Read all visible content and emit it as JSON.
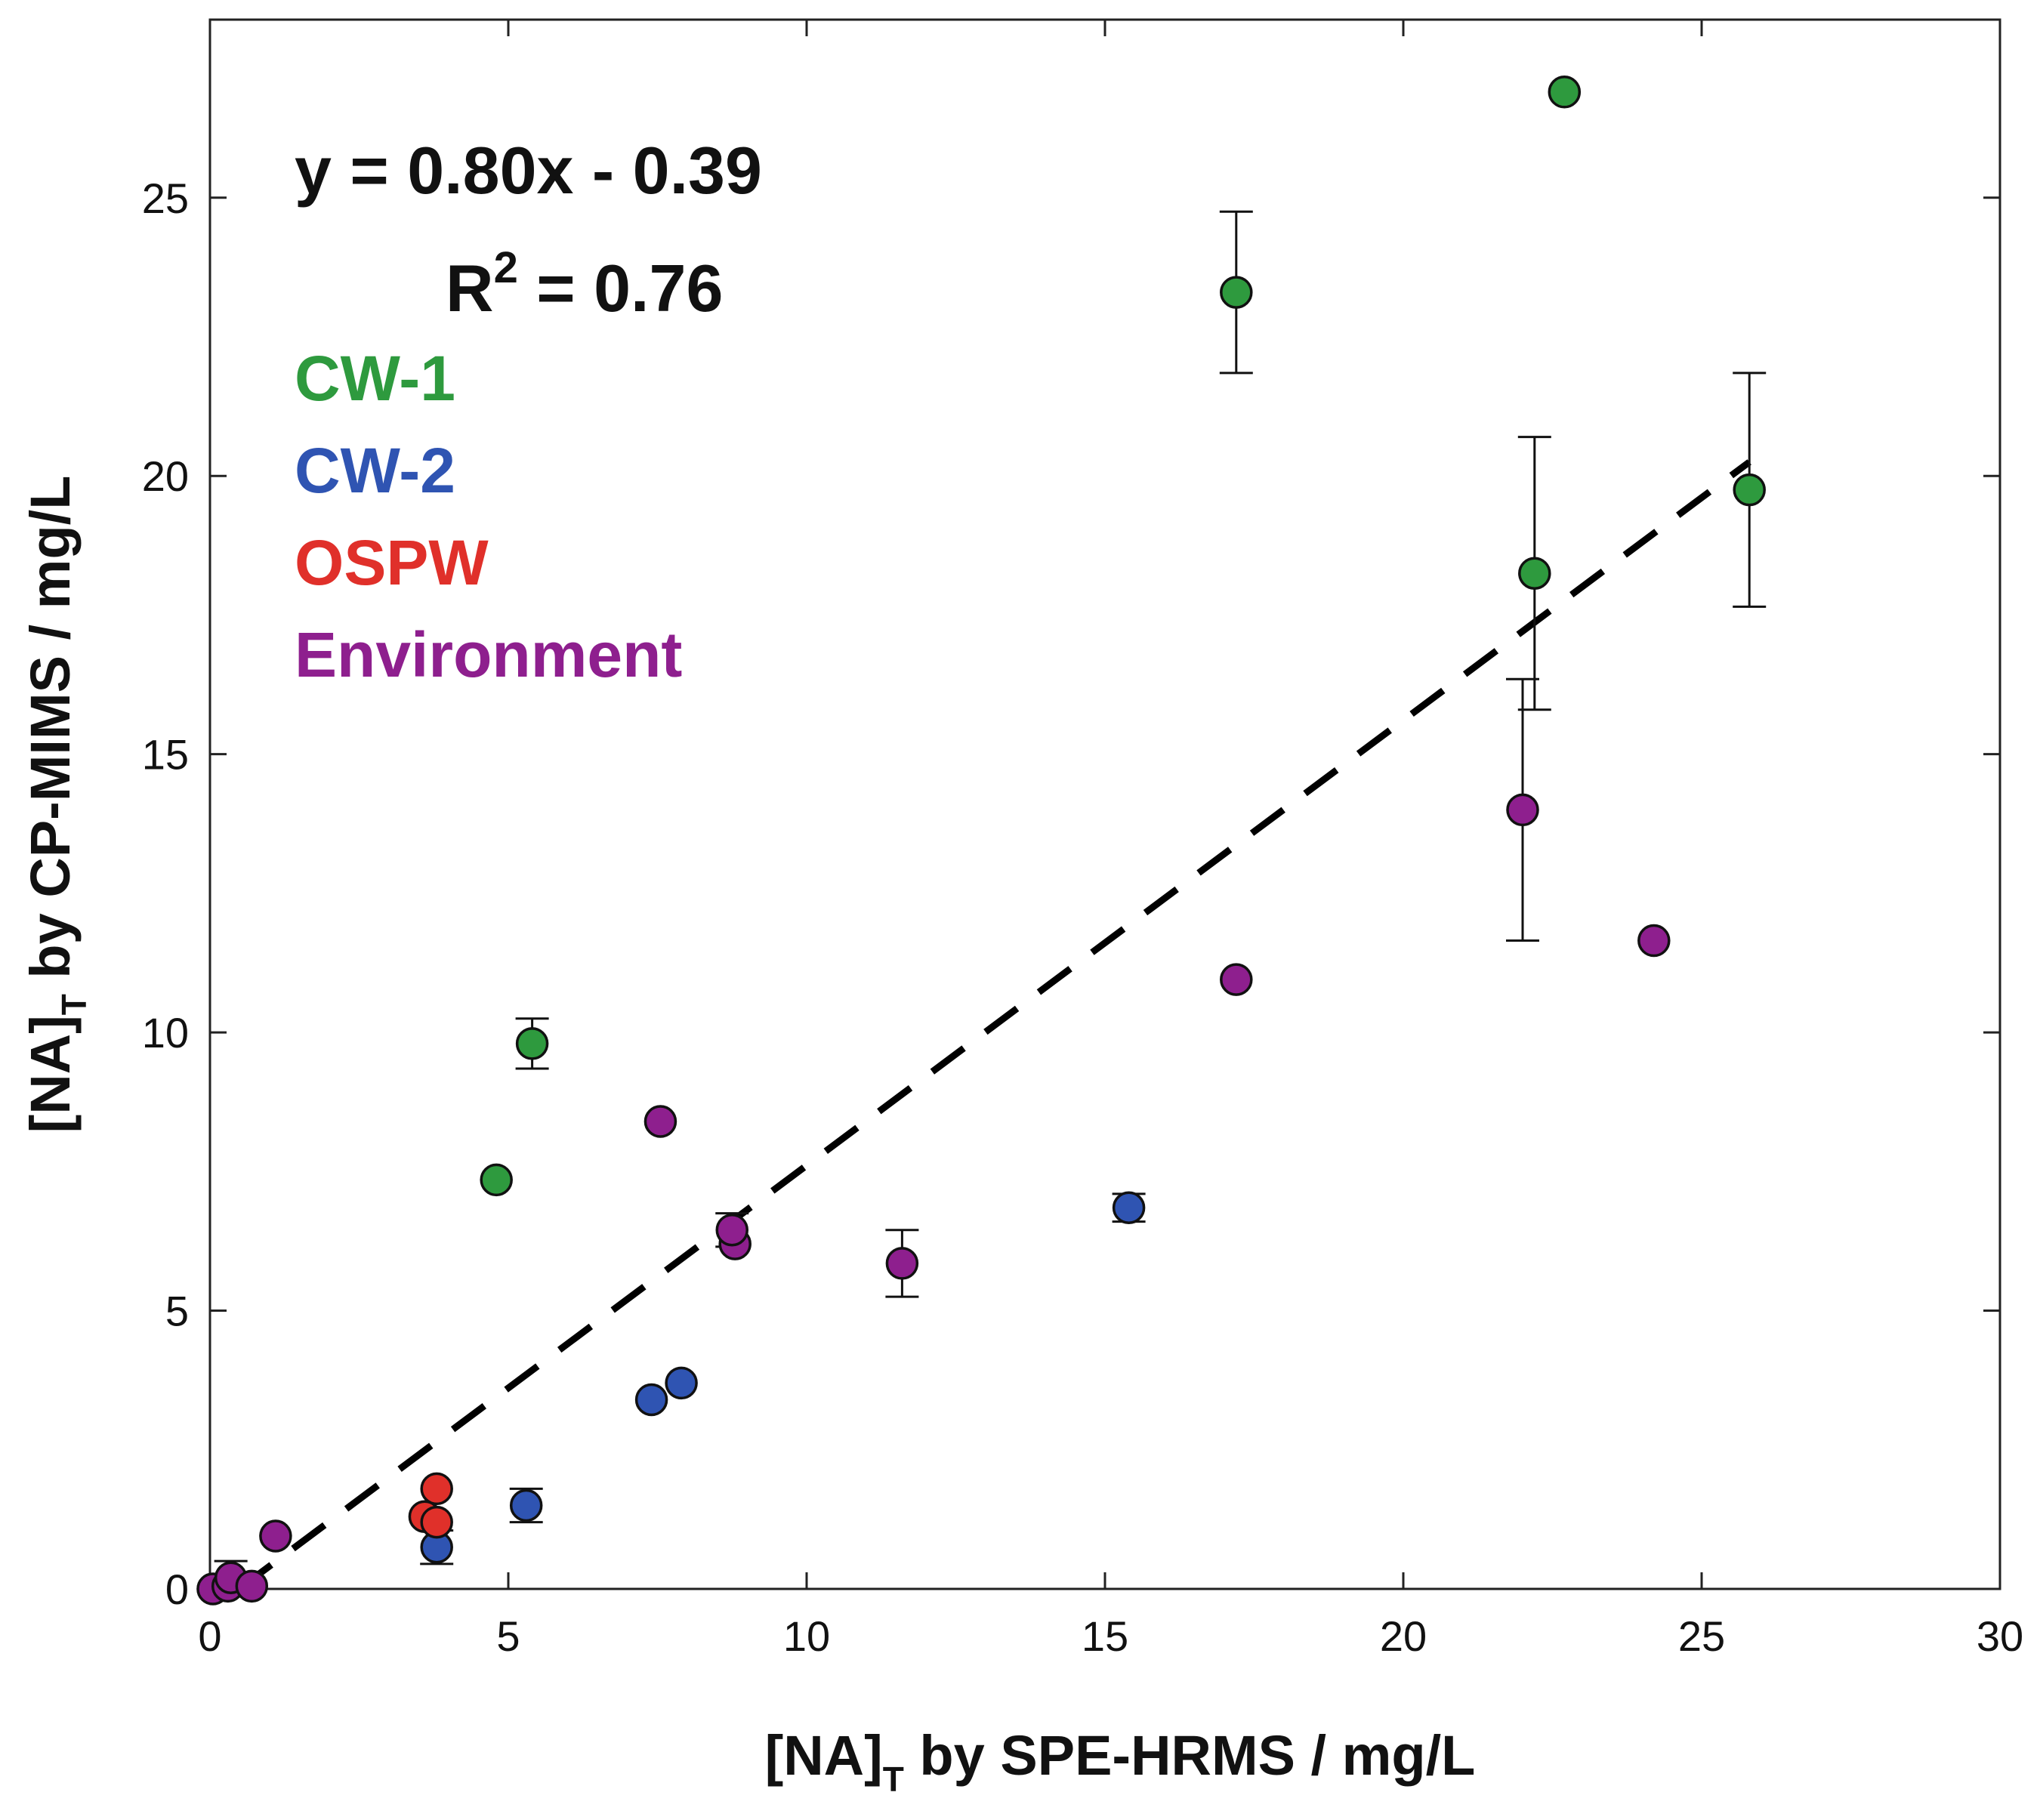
{
  "chart_data": {
    "type": "scatter",
    "xlabel": {
      "main": "[NA]",
      "sub": "T",
      "rest": " by SPE-HRMS / mg/L"
    },
    "ylabel": {
      "main": "[NA]",
      "sub": "T",
      "rest": " by CP-MIMS / mg/L"
    },
    "xlim": [
      0,
      30
    ],
    "ylim": [
      0,
      28.2
    ],
    "xticks": [
      0,
      5,
      10,
      15,
      20,
      25,
      30
    ],
    "yticks": [
      0,
      5,
      10,
      15,
      20,
      25
    ],
    "xtick_labels": [
      "0",
      "5",
      "10",
      "15",
      "20",
      "25",
      "30"
    ],
    "ytick_labels": [
      "0",
      "5",
      "10",
      "15",
      "20",
      "25"
    ],
    "grid": false,
    "legend_placement": "top-left",
    "annotations": {
      "equation": "y = 0.80x - 0.39",
      "r2_prefix": "R",
      "r2_sup": "2",
      "r2_rest": " = 0.76"
    },
    "fit_line": {
      "slope": 0.8,
      "intercept": -0.39,
      "x_start": 0.5,
      "x_end": 25.8,
      "style": "dashed",
      "color": "#000000"
    },
    "series": [
      {
        "name": "CW-1",
        "color": "#2e9a3e",
        "points": [
          {
            "x": 4.8,
            "y": 7.35
          },
          {
            "x": 5.4,
            "y": 9.8,
            "err": 0.45
          },
          {
            "x": 17.2,
            "y": 23.3,
            "err": 1.45
          },
          {
            "x": 22.2,
            "y": 18.25,
            "err": 2.45
          },
          {
            "x": 22.7,
            "y": 26.9
          },
          {
            "x": 25.8,
            "y": 19.75,
            "err": 2.1
          }
        ]
      },
      {
        "name": "CW-2",
        "color": "#2f54b2",
        "points": [
          {
            "x": 3.8,
            "y": 0.75,
            "err": 0.3
          },
          {
            "x": 5.3,
            "y": 1.5,
            "err": 0.3
          },
          {
            "x": 7.4,
            "y": 3.4
          },
          {
            "x": 7.9,
            "y": 3.7
          },
          {
            "x": 15.4,
            "y": 6.85,
            "err": 0.25
          }
        ]
      },
      {
        "name": "OSPW",
        "color": "#e0302a",
        "points": [
          {
            "x": 3.6,
            "y": 1.3
          },
          {
            "x": 3.8,
            "y": 1.2
          },
          {
            "x": 3.8,
            "y": 1.8
          }
        ]
      },
      {
        "name": "Environment",
        "color": "#8e1f8e",
        "points": [
          {
            "x": 0.05,
            "y": 0.0
          },
          {
            "x": 0.3,
            "y": 0.05
          },
          {
            "x": 0.35,
            "y": 0.2,
            "err": 0.3
          },
          {
            "x": 0.7,
            "y": 0.05
          },
          {
            "x": 1.1,
            "y": 0.95
          },
          {
            "x": 7.55,
            "y": 8.4
          },
          {
            "x": 8.8,
            "y": 6.2
          },
          {
            "x": 8.75,
            "y": 6.45,
            "err": 0.3
          },
          {
            "x": 11.6,
            "y": 5.85,
            "err": 0.6
          },
          {
            "x": 17.2,
            "y": 10.95
          },
          {
            "x": 22.0,
            "y": 14.0,
            "err": 2.35
          },
          {
            "x": 24.2,
            "y": 11.65
          }
        ]
      }
    ]
  }
}
